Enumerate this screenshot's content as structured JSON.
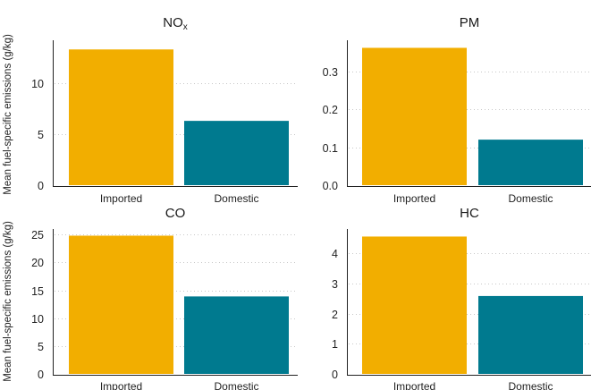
{
  "chart_data": [
    {
      "type": "bar",
      "title": "NO",
      "title_subscript": "x",
      "categories": [
        "Imported",
        "Domestic"
      ],
      "values": [
        13.3,
        6.3
      ],
      "ylabel": "Mean fuel-specific emissions (g/kg)",
      "ylim": [
        0,
        14.2
      ],
      "yticks": [
        "0",
        "5",
        "10"
      ],
      "ytick_values": [
        0,
        5,
        10
      ],
      "grid": "y-dotted"
    },
    {
      "type": "bar",
      "title": "PM",
      "categories": [
        "Imported",
        "Domestic"
      ],
      "values": [
        0.362,
        0.12
      ],
      "ylabel": "",
      "ylim": [
        0,
        0.382
      ],
      "yticks": [
        "0.0",
        "0.1",
        "0.2",
        "0.3"
      ],
      "ytick_values": [
        0,
        0.1,
        0.2,
        0.3
      ],
      "grid": "y-dotted"
    },
    {
      "type": "bar",
      "title": "CO",
      "categories": [
        "Imported",
        "Domestic"
      ],
      "values": [
        24.8,
        13.9
      ],
      "ylabel": "Mean fuel-specific emissions (g/kg)",
      "ylim": [
        0,
        26
      ],
      "yticks": [
        "0",
        "5",
        "10",
        "15",
        "20",
        "25"
      ],
      "ytick_values": [
        0,
        5,
        10,
        15,
        20,
        25
      ],
      "grid": "y-dotted"
    },
    {
      "type": "bar",
      "title": "HC",
      "categories": [
        "Imported",
        "Domestic"
      ],
      "values": [
        4.55,
        2.58
      ],
      "ylabel": "",
      "ylim": [
        0,
        4.8
      ],
      "yticks": [
        "0",
        "1",
        "2",
        "3",
        "4"
      ],
      "ytick_values": [
        0,
        1,
        2,
        3,
        4
      ],
      "grid": "y-dotted"
    }
  ],
  "colors": {
    "Imported": "#f2ae00",
    "Domestic": "#007a8f"
  }
}
